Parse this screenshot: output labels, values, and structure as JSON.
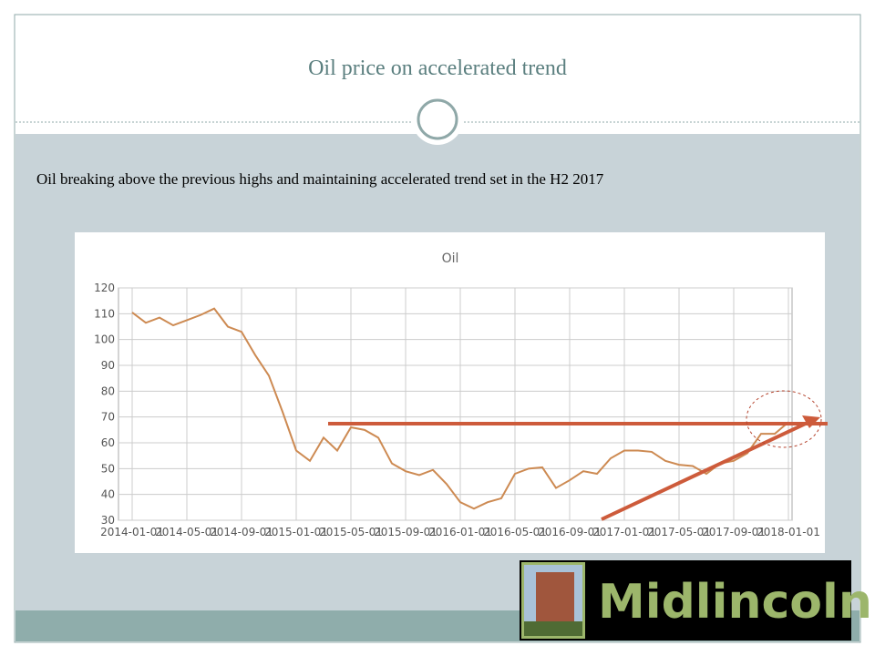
{
  "slide_title": "Oil price on accelerated trend",
  "subtitle": "Oil breaking above the previous highs and maintaining accelerated trend set in the H2 2017",
  "logo_text": "Midlincoln",
  "chart_data": {
    "type": "line",
    "title": "Oil",
    "categories": [
      "2014-01-01",
      null,
      null,
      null,
      "2014-05-01",
      null,
      null,
      null,
      "2014-09-01",
      null,
      null,
      null,
      "2015-01-01",
      null,
      null,
      null,
      "2015-05-01",
      null,
      null,
      null,
      "2015-09-01",
      null,
      null,
      null,
      "2016-01-01",
      null,
      null,
      null,
      "2016-05-01",
      null,
      null,
      null,
      "2016-09-01",
      null,
      null,
      null,
      "2017-01-01",
      null,
      null,
      null,
      "2017-05-01",
      null,
      null,
      null,
      "2017-09-01",
      null,
      null,
      null,
      "2018-01-01"
    ],
    "series": [
      {
        "name": "Oil",
        "color": "#cd8a52",
        "values": [
          110.5,
          106.5,
          108.5,
          105.5,
          107.5,
          109.5,
          112,
          105,
          103,
          94,
          86,
          72,
          57,
          53,
          62,
          57,
          66,
          65,
          62,
          52,
          49,
          47.5,
          49.5,
          44,
          37,
          34.5,
          37,
          38.5,
          48,
          50,
          50.5,
          42.5,
          45.5,
          49,
          48,
          54,
          57,
          57,
          56.5,
          53,
          51.5,
          51,
          48,
          52,
          53,
          56,
          63.5,
          63.5,
          68
        ]
      }
    ],
    "ylim": [
      30,
      120
    ],
    "yticks": [
      30,
      40,
      50,
      60,
      70,
      80,
      90,
      100,
      110,
      120
    ],
    "grid": true
  }
}
